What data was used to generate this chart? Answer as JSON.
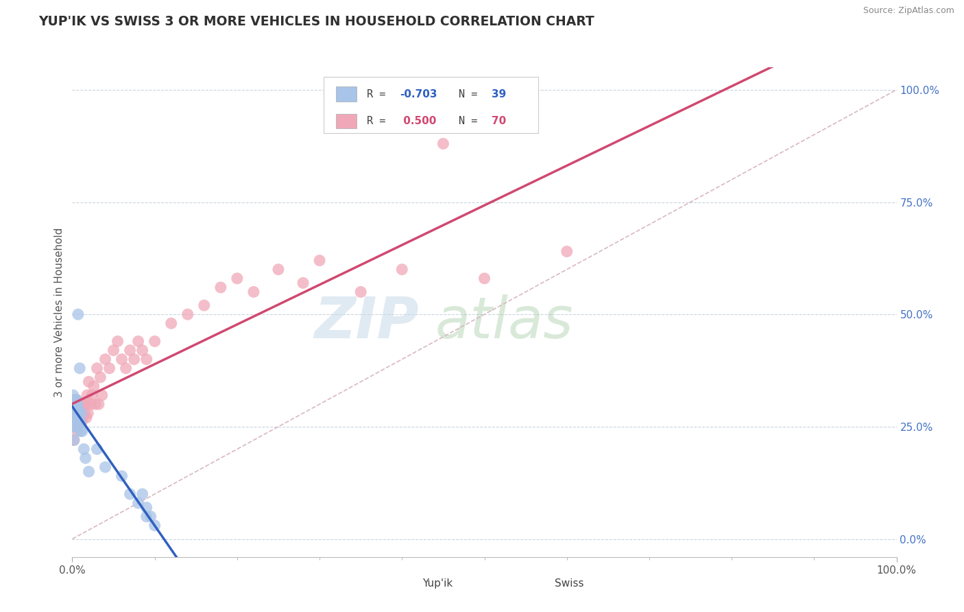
{
  "title": "YUP'IK VS SWISS 3 OR MORE VEHICLES IN HOUSEHOLD CORRELATION CHART",
  "source": "Source: ZipAtlas.com",
  "ylabel": "3 or more Vehicles in Household",
  "R_yupik": -0.703,
  "N_yupik": 39,
  "R_swiss": 0.5,
  "N_swiss": 70,
  "yupik_color": "#a8c4e8",
  "swiss_color": "#f0a8b8",
  "yupik_line_color": "#3060c0",
  "swiss_line_color": "#d04870",
  "diag_line_color": "#d8b8c0",
  "grid_color": "#c8d4e0",
  "title_color": "#303030",
  "right_axis_color": "#4472c4",
  "background_color": "#ffffff",
  "yupik_x": [
    0.001,
    0.001,
    0.002,
    0.002,
    0.002,
    0.003,
    0.003,
    0.003,
    0.004,
    0.004,
    0.005,
    0.005,
    0.005,
    0.005,
    0.006,
    0.006,
    0.006,
    0.007,
    0.007,
    0.007,
    0.008,
    0.009,
    0.01,
    0.01,
    0.011,
    0.012,
    0.014,
    0.016,
    0.02,
    0.03,
    0.04,
    0.06,
    0.07,
    0.08,
    0.085,
    0.09,
    0.09,
    0.095,
    0.1
  ],
  "yupik_y": [
    0.32,
    0.28,
    0.3,
    0.27,
    0.22,
    0.31,
    0.29,
    0.25,
    0.3,
    0.27,
    0.31,
    0.29,
    0.27,
    0.25,
    0.3,
    0.28,
    0.26,
    0.29,
    0.27,
    0.5,
    0.28,
    0.38,
    0.26,
    0.24,
    0.28,
    0.24,
    0.2,
    0.18,
    0.15,
    0.2,
    0.16,
    0.14,
    0.1,
    0.08,
    0.1,
    0.07,
    0.05,
    0.05,
    0.03
  ],
  "swiss_x": [
    0.001,
    0.001,
    0.002,
    0.002,
    0.002,
    0.003,
    0.003,
    0.003,
    0.004,
    0.004,
    0.004,
    0.005,
    0.005,
    0.005,
    0.006,
    0.006,
    0.006,
    0.007,
    0.007,
    0.007,
    0.008,
    0.008,
    0.009,
    0.009,
    0.01,
    0.01,
    0.011,
    0.012,
    0.013,
    0.014,
    0.015,
    0.016,
    0.017,
    0.018,
    0.019,
    0.02,
    0.022,
    0.024,
    0.026,
    0.028,
    0.03,
    0.032,
    0.034,
    0.036,
    0.04,
    0.045,
    0.05,
    0.055,
    0.06,
    0.065,
    0.07,
    0.075,
    0.08,
    0.085,
    0.09,
    0.1,
    0.12,
    0.14,
    0.16,
    0.18,
    0.2,
    0.22,
    0.25,
    0.28,
    0.3,
    0.35,
    0.4,
    0.45,
    0.5,
    0.6
  ],
  "swiss_y": [
    0.29,
    0.26,
    0.3,
    0.28,
    0.22,
    0.31,
    0.28,
    0.25,
    0.3,
    0.28,
    0.26,
    0.31,
    0.28,
    0.25,
    0.3,
    0.27,
    0.24,
    0.29,
    0.27,
    0.3,
    0.28,
    0.26,
    0.3,
    0.27,
    0.29,
    0.27,
    0.26,
    0.28,
    0.27,
    0.3,
    0.28,
    0.3,
    0.27,
    0.32,
    0.28,
    0.35,
    0.3,
    0.32,
    0.34,
    0.3,
    0.38,
    0.3,
    0.36,
    0.32,
    0.4,
    0.38,
    0.42,
    0.44,
    0.4,
    0.38,
    0.42,
    0.4,
    0.44,
    0.42,
    0.4,
    0.44,
    0.48,
    0.5,
    0.52,
    0.56,
    0.58,
    0.55,
    0.6,
    0.57,
    0.62,
    0.55,
    0.6,
    0.88,
    0.58,
    0.64
  ],
  "xlim": [
    0.0,
    1.0
  ],
  "ylim": [
    -0.04,
    1.05
  ],
  "yticks": [
    0.0,
    0.25,
    0.5,
    0.75,
    1.0
  ]
}
